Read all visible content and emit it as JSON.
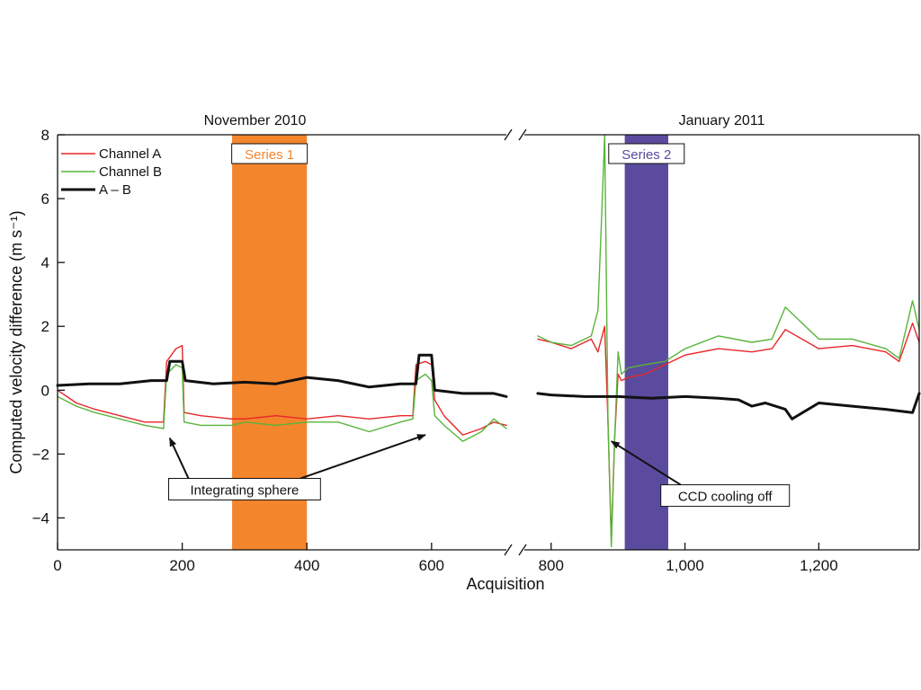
{
  "chart_data": {
    "type": "line",
    "xlabel": "Acquisition",
    "ylabel": "Computed velocity difference (m s⁻¹)",
    "ylim": [
      -5,
      8
    ],
    "x_segments": [
      {
        "xlim": [
          0,
          720
        ],
        "ticks": [
          0,
          200,
          400,
          600
        ],
        "header": "November 2010"
      },
      {
        "xlim": [
          760,
          1350
        ],
        "ticks": [
          800,
          1000,
          1200
        ],
        "header": "January 2011"
      }
    ],
    "x_tick_labels": [
      "0",
      "200",
      "400",
      "600",
      "800",
      "1,000",
      "1,200"
    ],
    "y_ticks": [
      -4,
      -2,
      0,
      2,
      4,
      6,
      8
    ],
    "y_tick_labels": [
      "−4",
      "−2",
      "0",
      "2",
      "4",
      "6",
      "8"
    ],
    "grid": false,
    "legend_position": "top-left",
    "legend": [
      {
        "name": "Channel A",
        "color": "#e8262a",
        "stroke": 1.4
      },
      {
        "name": "Channel B",
        "color": "#59b43a",
        "stroke": 1.4
      },
      {
        "name": "A – B",
        "color": "#111111",
        "stroke": 3
      }
    ],
    "bands": [
      {
        "label": "Series 1",
        "x0": 280,
        "x1": 400,
        "color": "#f3852d",
        "label_color": "#f3852d"
      },
      {
        "label": "Series 2",
        "x0": 910,
        "x1": 975,
        "color": "#5b4b9e",
        "label_color": "#5b4b9e"
      }
    ],
    "annotations": [
      {
        "text": "Integrating sphere",
        "text_x": 300,
        "text_y": -3.1,
        "arrows_to": [
          [
            180,
            -1.5
          ],
          [
            590,
            -1.4
          ]
        ]
      },
      {
        "text": "CCD cooling off",
        "text_x": 1060,
        "text_y": -3.3,
        "arrows_to": [
          [
            890,
            -1.6
          ]
        ]
      }
    ],
    "series": [
      {
        "name": "Channel A",
        "segments": [
          {
            "x": [
              0,
              30,
              60,
              100,
              140,
              170,
              175,
              190,
              200,
              203,
              230,
              280,
              300,
              350,
              400,
              450,
              500,
              550,
              570,
              575,
              590,
              600,
              605,
              620,
              650,
              680,
              700,
              720
            ],
            "y": [
              0.0,
              -0.4,
              -0.6,
              -0.8,
              -1.0,
              -1.0,
              0.9,
              1.3,
              1.4,
              -0.7,
              -0.8,
              -0.9,
              -0.9,
              -0.8,
              -0.9,
              -0.8,
              -0.9,
              -0.8,
              -0.8,
              0.8,
              0.9,
              0.8,
              -0.3,
              -0.8,
              -1.4,
              -1.2,
              -1.0,
              -1.1
            ]
          },
          {
            "x": [
              780,
              800,
              830,
              860,
              870,
              880,
              885,
              890,
              895,
              900,
              905,
              915,
              940,
              970,
              1000,
              1050,
              1100,
              1130,
              1150,
              1200,
              1250,
              1300,
              1320,
              1340,
              1350
            ],
            "y": [
              1.6,
              1.5,
              1.3,
              1.6,
              1.2,
              2.0,
              -1.0,
              -4.7,
              -1.5,
              0.5,
              0.3,
              0.4,
              0.5,
              0.8,
              1.1,
              1.3,
              1.2,
              1.3,
              1.9,
              1.3,
              1.4,
              1.2,
              0.9,
              2.1,
              1.5
            ]
          }
        ]
      },
      {
        "name": "Channel B",
        "segments": [
          {
            "x": [
              0,
              30,
              60,
              100,
              140,
              170,
              175,
              190,
              200,
              203,
              230,
              280,
              300,
              350,
              400,
              450,
              500,
              550,
              570,
              575,
              590,
              600,
              605,
              620,
              650,
              680,
              700,
              720
            ],
            "y": [
              -0.2,
              -0.5,
              -0.7,
              -0.9,
              -1.1,
              -1.2,
              0.5,
              0.8,
              0.7,
              -1.0,
              -1.1,
              -1.1,
              -1.0,
              -1.1,
              -1.0,
              -1.0,
              -1.3,
              -1.0,
              -0.9,
              0.3,
              0.5,
              0.3,
              -0.8,
              -1.1,
              -1.6,
              -1.3,
              -0.9,
              -1.2
            ]
          },
          {
            "x": [
              780,
              800,
              830,
              860,
              870,
              875,
              880,
              885,
              890,
              895,
              900,
              905,
              915,
              940,
              970,
              1000,
              1050,
              1100,
              1130,
              1150,
              1200,
              1250,
              1300,
              1320,
              1340,
              1350
            ],
            "y": [
              1.7,
              1.5,
              1.4,
              1.7,
              2.5,
              5.2,
              8.0,
              -1.0,
              -4.9,
              -1.5,
              1.2,
              0.5,
              0.7,
              0.8,
              0.9,
              1.3,
              1.7,
              1.5,
              1.6,
              2.6,
              1.6,
              1.6,
              1.3,
              1.0,
              2.8,
              1.9
            ]
          }
        ]
      },
      {
        "name": "A – B",
        "segments": [
          {
            "x": [
              0,
              50,
              100,
              150,
              175,
              180,
              200,
              205,
              250,
              300,
              350,
              400,
              450,
              500,
              550,
              575,
              580,
              600,
              605,
              650,
              700,
              720
            ],
            "y": [
              0.15,
              0.2,
              0.2,
              0.3,
              0.3,
              0.9,
              0.9,
              0.3,
              0.2,
              0.25,
              0.2,
              0.4,
              0.3,
              0.1,
              0.2,
              0.2,
              1.1,
              1.1,
              0.0,
              -0.1,
              -0.1,
              -0.2
            ]
          },
          {
            "x": [
              780,
              800,
              850,
              900,
              950,
              1000,
              1050,
              1080,
              1100,
              1120,
              1150,
              1160,
              1200,
              1250,
              1300,
              1340,
              1350
            ],
            "y": [
              -0.1,
              -0.15,
              -0.2,
              -0.2,
              -0.25,
              -0.2,
              -0.25,
              -0.3,
              -0.5,
              -0.4,
              -0.6,
              -0.9,
              -0.4,
              -0.5,
              -0.6,
              -0.7,
              -0.1
            ]
          }
        ]
      }
    ]
  }
}
